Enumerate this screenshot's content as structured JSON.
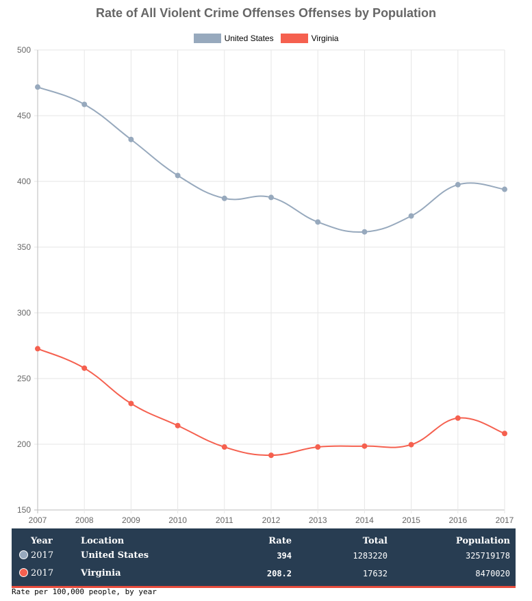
{
  "chart_data": {
    "type": "line",
    "title": "Rate of All Violent Crime Offenses Offenses by Population",
    "x": [
      "2007",
      "2008",
      "2009",
      "2010",
      "2011",
      "2012",
      "2013",
      "2014",
      "2015",
      "2016",
      "2017"
    ],
    "ylim": [
      150,
      500
    ],
    "yticks": [
      150,
      200,
      250,
      300,
      350,
      400,
      450,
      500
    ],
    "grid": true,
    "legend_position": "top",
    "series": [
      {
        "name": "United States",
        "color": "#97a9bd",
        "values": [
          471.8,
          458.6,
          431.9,
          404.5,
          387.1,
          387.8,
          369.1,
          361.6,
          373.7,
          397.5,
          394.0
        ]
      },
      {
        "name": "Virginia",
        "color": "#f5604f",
        "values": [
          272.7,
          257.9,
          231.0,
          214.2,
          197.9,
          191.6,
          197.9,
          198.6,
          199.7,
          219.9,
          208.2
        ]
      }
    ]
  },
  "table": {
    "headers": {
      "year": "Year",
      "location": "Location",
      "rate": "Rate",
      "total": "Total",
      "population": "Population"
    },
    "rows": [
      {
        "year": "2017",
        "location": "United States",
        "rate": "394",
        "total": "1283220",
        "population": "325719178",
        "color": "#97a9bd"
      },
      {
        "year": "2017",
        "location": "Virginia",
        "rate": "208.2",
        "total": "17632",
        "population": "8470020",
        "color": "#f5604f"
      }
    ]
  },
  "footnote": "Rate per 100,000 people, by year"
}
